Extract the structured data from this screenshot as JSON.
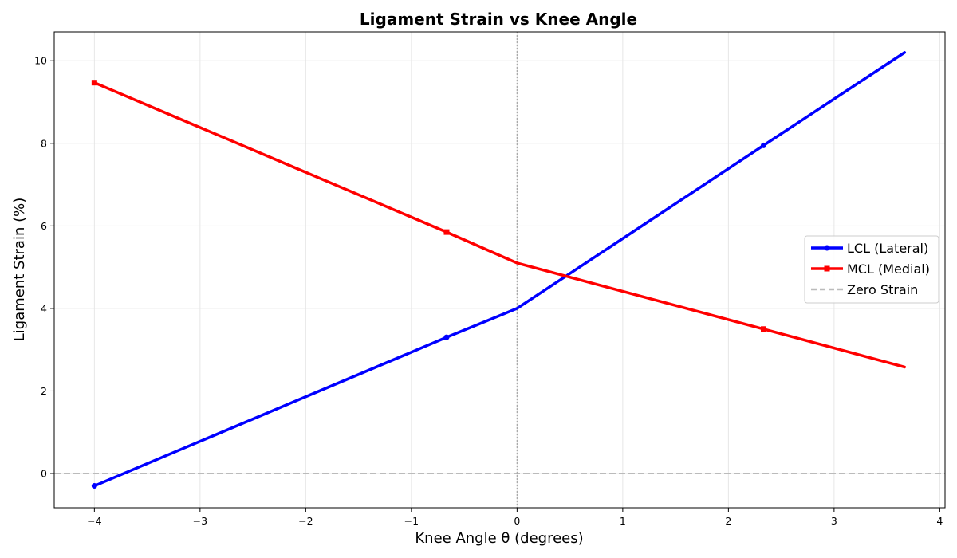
{
  "chart_data": {
    "type": "line",
    "title": "Ligament Strain vs Knee Angle",
    "xlabel": "Knee Angle θ (degrees)",
    "ylabel": "Ligament Strain (%)",
    "xlim": [
      -4.38,
      4.05
    ],
    "ylim": [
      -0.83,
      10.7
    ],
    "xticks": [
      -4,
      -3,
      -2,
      -1,
      0,
      1,
      2,
      3,
      4
    ],
    "xtick_labels": [
      "−4",
      "−3",
      "−2",
      "−1",
      "0",
      "1",
      "2",
      "3",
      "4"
    ],
    "yticks": [
      0,
      2,
      4,
      6,
      8,
      10
    ],
    "ytick_labels": [
      "0",
      "2",
      "4",
      "6",
      "8",
      "10"
    ],
    "grid": true,
    "legend_position": "center-right",
    "series": [
      {
        "name": "LCL (Lateral)",
        "color": "#0000ff",
        "marker": "circle",
        "x": [
          -4,
          -0.667,
          0,
          2.333,
          3.667
        ],
        "y": [
          -0.3,
          3.3,
          4.0,
          7.95,
          10.2
        ],
        "marker_x": [
          -4,
          -0.667,
          2.333
        ]
      },
      {
        "name": "MCL (Medial)",
        "color": "#ff0000",
        "marker": "square",
        "x": [
          -4,
          -0.667,
          0,
          2.333,
          3.667
        ],
        "y": [
          9.47,
          5.85,
          5.1,
          3.5,
          2.58
        ],
        "marker_x": [
          -4,
          -0.667,
          2.333
        ]
      }
    ],
    "reference_lines": [
      {
        "name": "Zero Strain",
        "orientation": "horizontal",
        "value": 0,
        "color": "#bbbbbb",
        "style": "dashed"
      },
      {
        "orientation": "vertical",
        "value": 0,
        "color": "#aaaaaa",
        "style": "dotted"
      }
    ]
  }
}
